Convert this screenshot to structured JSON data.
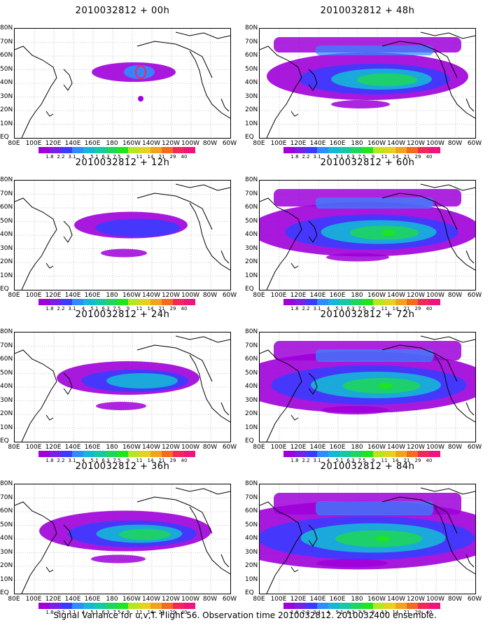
{
  "panels": [
    {
      "title": "2010032812 + 00h",
      "intensity": 0
    },
    {
      "title": "2010032812 + 48h",
      "intensity": 4
    },
    {
      "title": "2010032812 + 12h",
      "intensity": 1
    },
    {
      "title": "2010032812 + 60h",
      "intensity": 5
    },
    {
      "title": "2010032812 + 24h",
      "intensity": 2
    },
    {
      "title": "2010032812 + 72h",
      "intensity": 6
    },
    {
      "title": "2010032812 + 36h",
      "intensity": 3
    },
    {
      "title": "2010032812 + 84h",
      "intensity": 7
    }
  ],
  "lat_labels": [
    "80N",
    "70N",
    "60N",
    "50N",
    "40N",
    "30N",
    "20N",
    "10N",
    "EQ"
  ],
  "lon_labels": [
    "80E",
    "100E",
    "120E",
    "140E",
    "160E",
    "180",
    "160W",
    "140W",
    "120W",
    "100W",
    "80W",
    "60W"
  ],
  "colorbar": {
    "labels": [
      "1.8",
      "2.2",
      "3.1",
      "4",
      "5.1",
      "6.3",
      "7.5",
      "9",
      "11",
      "14",
      "21",
      "29",
      "40"
    ],
    "colors": [
      "#9f00d9",
      "#7a1fe6",
      "#3b3bff",
      "#2f8cff",
      "#15b6d6",
      "#14c9a4",
      "#1fd45f",
      "#1ee61e",
      "#b6e61e",
      "#e6d21e",
      "#f2a31e",
      "#f26b1e",
      "#f2275a",
      "#f0147f"
    ]
  },
  "footer": "Signal Variance for u,v,T. Flight 56. Observation time 2010032812. 2010032400 ensemble."
}
